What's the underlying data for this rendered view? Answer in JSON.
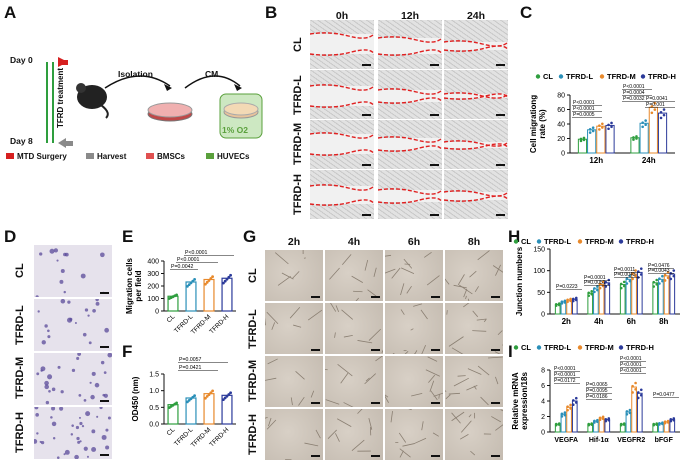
{
  "panels": {
    "A": "A",
    "B": "B",
    "C": "C",
    "D": "D",
    "E": "E",
    "F": "F",
    "G": "G",
    "H": "H",
    "I": "I"
  },
  "schematic": {
    "day0": "Day 0",
    "day8": "Day 8",
    "treatment": "TFRD treatment",
    "isolation": "Isolation",
    "cm": "CM",
    "oxygen": "1% O2",
    "legend": [
      {
        "label": "MTD Surgery",
        "color": "#d62020"
      },
      {
        "label": "Harvest",
        "color": "#8a8a8a"
      },
      {
        "label": "BMSCs",
        "color": "#e05050"
      },
      {
        "label": "HUVECs",
        "color": "#5aa03c"
      }
    ]
  },
  "groups": [
    "CL",
    "TFRD-L",
    "TFRD-M",
    "TFRD-H"
  ],
  "colors": {
    "CL": "#2e9e3e",
    "TFRD-L": "#2a8fb8",
    "TFRD-M": "#e8892b",
    "TFRD-H": "#2b3a9a",
    "scratch": "#e02020"
  },
  "scratch": {
    "times": [
      "0h",
      "12h",
      "24h"
    ]
  },
  "tube": {
    "times": [
      "2h",
      "4h",
      "6h",
      "8h"
    ]
  },
  "chart_data": [
    {
      "type": "bar",
      "panel": "C",
      "ylabel": "Cell migrationg rate (%)",
      "categories": [
        "12h",
        "24h"
      ],
      "series": [
        {
          "name": "CL",
          "values": [
            19,
            21
          ]
        },
        {
          "name": "TFRD-L",
          "values": [
            32,
            41
          ]
        },
        {
          "name": "TFRD-M",
          "values": [
            37,
            63
          ]
        },
        {
          "name": "TFRD-H",
          "values": [
            38,
            55
          ]
        }
      ],
      "ylim": [
        0,
        80
      ],
      "yticks": [
        0,
        20,
        40,
        60,
        80
      ],
      "pvalues": [
        "P<0.0001",
        "P<0.0001",
        "P=0.0005",
        "P<0.0001",
        "P=0.0004",
        "P=0.0032",
        "P=0.0041",
        "P=0.001"
      ]
    },
    {
      "type": "bar",
      "panel": "E",
      "ylabel": "Migration cells per field",
      "categories": [
        "CL",
        "TFRD-L",
        "TFRD-M",
        "TFRD-H"
      ],
      "values": [
        118,
        232,
        252,
        262
      ],
      "ylim": [
        0,
        400
      ],
      "yticks": [
        0,
        100,
        200,
        300,
        400
      ],
      "pvalues": [
        "P<0.0001",
        "P<0.0001",
        "P=0.0042"
      ]
    },
    {
      "type": "bar",
      "panel": "F",
      "ylabel": "OD450 (nm)",
      "categories": [
        "CL",
        "TFRD-L",
        "TFRD-M",
        "TFRD-H"
      ],
      "values": [
        0.58,
        0.78,
        0.91,
        0.86
      ],
      "ylim": [
        0,
        1.5
      ],
      "yticks": [
        0.0,
        0.5,
        1.0,
        1.5
      ],
      "pvalues": [
        "P=0.0057",
        "P=0.0421"
      ]
    },
    {
      "type": "bar",
      "panel": "H",
      "ylabel": "Junction numbers",
      "categories": [
        "2h",
        "4h",
        "6h",
        "8h"
      ],
      "series": [
        {
          "name": "CL",
          "values": [
            22,
            48,
            68,
            72
          ]
        },
        {
          "name": "TFRD-L",
          "values": [
            28,
            58,
            80,
            80
          ]
        },
        {
          "name": "TFRD-M",
          "values": [
            32,
            68,
            92,
            88
          ]
        },
        {
          "name": "TFRD-H",
          "values": [
            34,
            72,
            96,
            92
          ]
        }
      ],
      "ylim": [
        0,
        150
      ],
      "yticks": [
        0,
        50,
        100,
        150
      ],
      "pvalues": [
        "P=0.0223",
        "P=0.0001",
        "P=0.0051",
        "P=0.0011",
        "P=0.0043",
        "P=0.0476",
        "P=0.0043"
      ]
    },
    {
      "type": "bar",
      "panel": "I",
      "ylabel": "Relative mRNA expression/18s",
      "categories": [
        "VEGFA",
        "Hif-1α",
        "VEGFR2",
        "bFGF"
      ],
      "series": [
        {
          "name": "CL",
          "values": [
            1,
            1,
            1,
            1
          ]
        },
        {
          "name": "TFRD-L",
          "values": [
            2.3,
            1.4,
            2.6,
            1.1
          ]
        },
        {
          "name": "TFRD-M",
          "values": [
            3.2,
            1.8,
            5.8,
            1.3
          ]
        },
        {
          "name": "TFRD-H",
          "values": [
            4.0,
            1.6,
            5.0,
            1.6
          ]
        }
      ],
      "ylim": [
        0,
        8
      ],
      "yticks": [
        0,
        2,
        4,
        6,
        8
      ],
      "pvalues": [
        "P<0.0001",
        "P<0.0001",
        "P=0.0172",
        "P=0.0065",
        "P=0.0095",
        "P=0.0186",
        "P<0.0001",
        "P<0.0001",
        "P<0.0001",
        "P=0.0477"
      ]
    }
  ]
}
